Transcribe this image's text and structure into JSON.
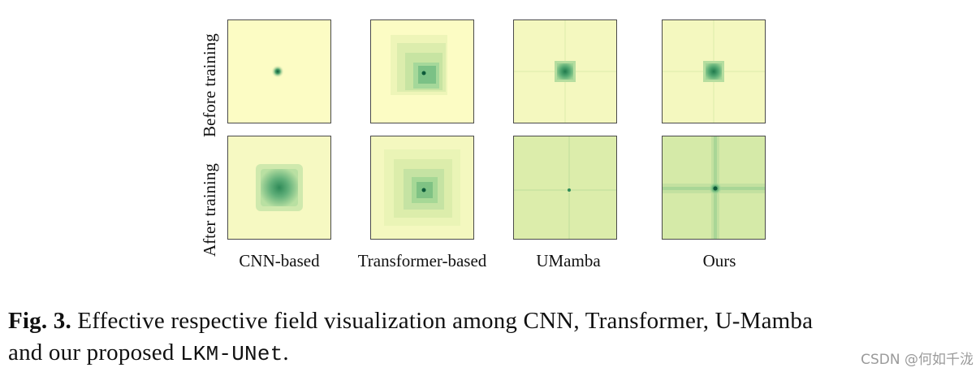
{
  "figure": {
    "row_labels": [
      "Before training",
      "After training"
    ],
    "column_labels": [
      "CNN-based",
      "Transformer-based",
      "UMamba",
      "Ours"
    ],
    "colors": {
      "background": "#fcfcc4",
      "mid": "#a5d89a",
      "dark": "#2e8a58",
      "center": "#0d5a3a",
      "border": "#4a4a4a"
    }
  },
  "caption": {
    "label": "Fig. 3.",
    "line1_text": " Effective respective field visualization among CNN, Transformer, U-Mamba",
    "line2_text": "and our proposed ",
    "model_name": "LKM-UNet",
    "line2_end": "."
  },
  "watermark": "CSDN @何如千泷"
}
